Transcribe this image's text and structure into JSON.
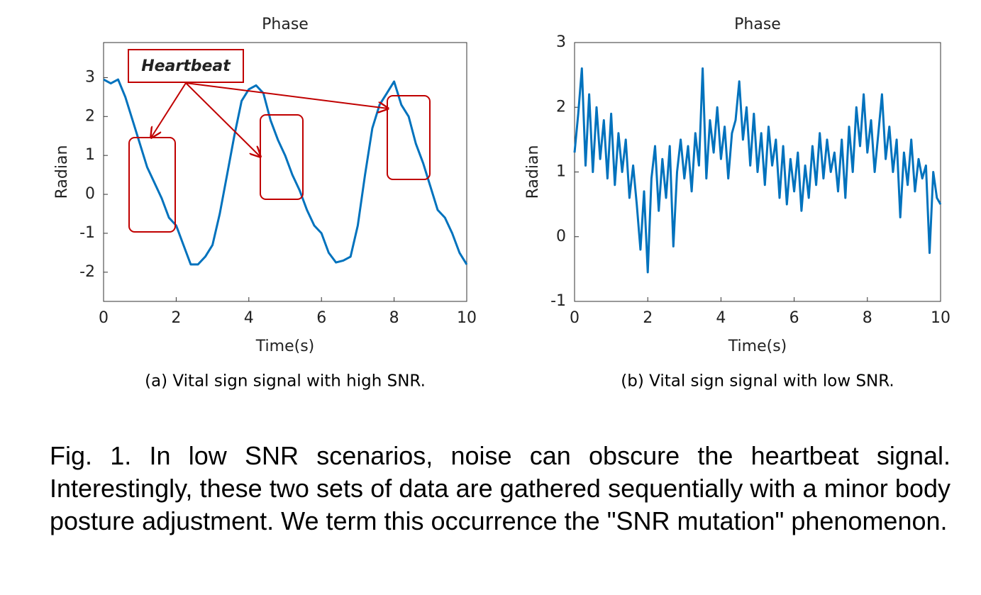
{
  "chart_data": [
    {
      "type": "line",
      "title": "Phase",
      "xlabel": "Time(s)",
      "ylabel": "Radian",
      "caption": "(a) Vital sign signal with high SNR.",
      "annotation": "Heartbeat",
      "color": "#0072bd",
      "x": [
        0,
        0.2,
        0.4,
        0.6,
        0.8,
        1.0,
        1.2,
        1.4,
        1.6,
        1.8,
        2.0,
        2.2,
        2.4,
        2.6,
        2.8,
        3.0,
        3.2,
        3.4,
        3.6,
        3.8,
        4.0,
        4.2,
        4.4,
        4.6,
        4.8,
        5.0,
        5.2,
        5.4,
        5.6,
        5.8,
        6.0,
        6.2,
        6.4,
        6.6,
        6.8,
        7.0,
        7.2,
        7.4,
        7.6,
        7.8,
        8.0,
        8.2,
        8.4,
        8.6,
        8.8,
        9.0,
        9.2,
        9.4,
        9.6,
        9.8,
        10.0
      ],
      "values": [
        2.95,
        2.85,
        2.95,
        2.5,
        1.9,
        1.3,
        0.7,
        0.3,
        -0.1,
        -0.6,
        -0.8,
        -1.3,
        -1.8,
        -1.8,
        -1.6,
        -1.3,
        -0.5,
        0.5,
        1.5,
        2.4,
        2.7,
        2.8,
        2.6,
        1.9,
        1.4,
        1.0,
        0.5,
        0.1,
        -0.4,
        -0.8,
        -1.0,
        -1.5,
        -1.75,
        -1.7,
        -1.6,
        -0.8,
        0.5,
        1.7,
        2.3,
        2.6,
        2.9,
        2.3,
        2.0,
        1.3,
        0.8,
        0.2,
        -0.4,
        -0.6,
        -1.0,
        -1.5,
        -1.8
      ],
      "xlim": [
        0,
        10
      ],
      "xticks": [
        0,
        2,
        4,
        6,
        8,
        10
      ],
      "ylim": [
        -2.75,
        3.9
      ],
      "yticks": [
        -2,
        -1,
        0,
        1,
        2,
        3
      ]
    },
    {
      "type": "line",
      "title": "Phase",
      "xlabel": "Time(s)",
      "ylabel": "Radian",
      "caption": "(b) Vital sign signal with low SNR.",
      "color": "#0072bd",
      "x": [
        0,
        0.1,
        0.2,
        0.3,
        0.4,
        0.5,
        0.6,
        0.7,
        0.8,
        0.9,
        1.0,
        1.1,
        1.2,
        1.3,
        1.4,
        1.5,
        1.6,
        1.7,
        1.8,
        1.9,
        2.0,
        2.1,
        2.2,
        2.3,
        2.4,
        2.5,
        2.6,
        2.7,
        2.8,
        2.9,
        3.0,
        3.1,
        3.2,
        3.3,
        3.4,
        3.5,
        3.6,
        3.7,
        3.8,
        3.9,
        4.0,
        4.1,
        4.2,
        4.3,
        4.4,
        4.5,
        4.6,
        4.7,
        4.8,
        4.9,
        5.0,
        5.1,
        5.2,
        5.3,
        5.4,
        5.5,
        5.6,
        5.7,
        5.8,
        5.9,
        6.0,
        6.1,
        6.2,
        6.3,
        6.4,
        6.5,
        6.6,
        6.7,
        6.8,
        6.9,
        7.0,
        7.1,
        7.2,
        7.3,
        7.4,
        7.5,
        7.6,
        7.7,
        7.8,
        7.9,
        8.0,
        8.1,
        8.2,
        8.3,
        8.4,
        8.5,
        8.6,
        8.7,
        8.8,
        8.9,
        9.0,
        9.1,
        9.2,
        9.3,
        9.4,
        9.5,
        9.6,
        9.7,
        9.8,
        9.9,
        10.0
      ],
      "values": [
        1.3,
        1.9,
        2.6,
        1.1,
        2.2,
        1.0,
        2.0,
        1.2,
        1.8,
        0.9,
        1.9,
        0.8,
        1.6,
        1.0,
        1.5,
        0.6,
        1.1,
        0.5,
        -0.2,
        0.7,
        -0.55,
        0.9,
        1.4,
        0.4,
        1.2,
        0.6,
        1.4,
        -0.15,
        1.0,
        1.5,
        0.9,
        1.4,
        0.7,
        1.6,
        1.1,
        2.6,
        0.9,
        1.8,
        1.3,
        2.0,
        1.2,
        1.7,
        0.9,
        1.6,
        1.8,
        2.4,
        1.5,
        2.0,
        1.1,
        1.9,
        1.0,
        1.6,
        0.8,
        1.7,
        1.1,
        1.5,
        0.6,
        1.4,
        0.5,
        1.2,
        0.7,
        1.3,
        0.4,
        1.1,
        0.6,
        1.4,
        0.8,
        1.6,
        0.9,
        1.5,
        1.0,
        1.3,
        0.7,
        1.5,
        0.6,
        1.7,
        1.0,
        2.0,
        1.4,
        2.2,
        1.3,
        1.8,
        1.0,
        1.6,
        2.2,
        1.2,
        1.7,
        1.0,
        1.5,
        0.3,
        1.3,
        0.8,
        1.5,
        0.7,
        1.2,
        0.9,
        1.1,
        -0.25,
        1.0,
        0.6,
        0.5
      ],
      "xlim": [
        0,
        10
      ],
      "xticks": [
        0,
        2,
        4,
        6,
        8,
        10
      ],
      "ylim": [
        -1,
        3
      ],
      "yticks": [
        -1,
        0,
        1,
        2,
        3
      ]
    }
  ],
  "figure_caption": "Fig. 1. In low SNR scenarios, noise can obscure the heartbeat signal. Interestingly, these two sets of data are gathered sequentially with a minor body posture adjustment. We term this occurrence the \"SNR mutation\" phenomenon."
}
